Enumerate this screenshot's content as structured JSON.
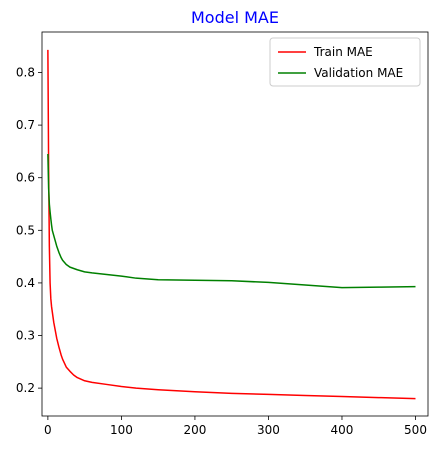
{
  "chart_data": {
    "type": "line",
    "title": "Model MAE",
    "title_color": "#0000ff",
    "xlabel": "",
    "ylabel": "",
    "xlim": [
      -8,
      517
    ],
    "ylim": [
      0.147,
      0.877
    ],
    "xticks": [
      0,
      100,
      200,
      300,
      400,
      500
    ],
    "yticks": [
      0.2,
      0.3,
      0.4,
      0.5,
      0.6,
      0.7,
      0.8
    ],
    "grid": false,
    "legend_position": "top-right",
    "series": [
      {
        "name": "Train MAE",
        "color": "#ff0000",
        "x": [
          0,
          1,
          2,
          3,
          4,
          5,
          6,
          8,
          10,
          12,
          15,
          18,
          20,
          25,
          30,
          35,
          40,
          50,
          60,
          80,
          100,
          120,
          150,
          200,
          250,
          300,
          350,
          400,
          450,
          500
        ],
        "y": [
          0.843,
          0.62,
          0.47,
          0.4,
          0.37,
          0.355,
          0.345,
          0.325,
          0.31,
          0.295,
          0.278,
          0.263,
          0.255,
          0.24,
          0.232,
          0.225,
          0.22,
          0.214,
          0.211,
          0.207,
          0.203,
          0.2,
          0.197,
          0.193,
          0.19,
          0.188,
          0.186,
          0.184,
          0.182,
          0.18
        ]
      },
      {
        "name": "Validation MAE",
        "color": "#008000",
        "x": [
          0,
          1,
          2,
          3,
          4,
          5,
          6,
          8,
          10,
          12,
          15,
          18,
          20,
          25,
          30,
          40,
          50,
          60,
          80,
          100,
          120,
          150,
          200,
          250,
          300,
          350,
          400,
          450,
          500
        ],
        "y": [
          0.645,
          0.58,
          0.55,
          0.535,
          0.522,
          0.51,
          0.5,
          0.49,
          0.48,
          0.47,
          0.458,
          0.448,
          0.443,
          0.435,
          0.43,
          0.425,
          0.421,
          0.419,
          0.416,
          0.413,
          0.409,
          0.406,
          0.405,
          0.404,
          0.401,
          0.396,
          0.391,
          0.392,
          0.393
        ]
      }
    ]
  }
}
